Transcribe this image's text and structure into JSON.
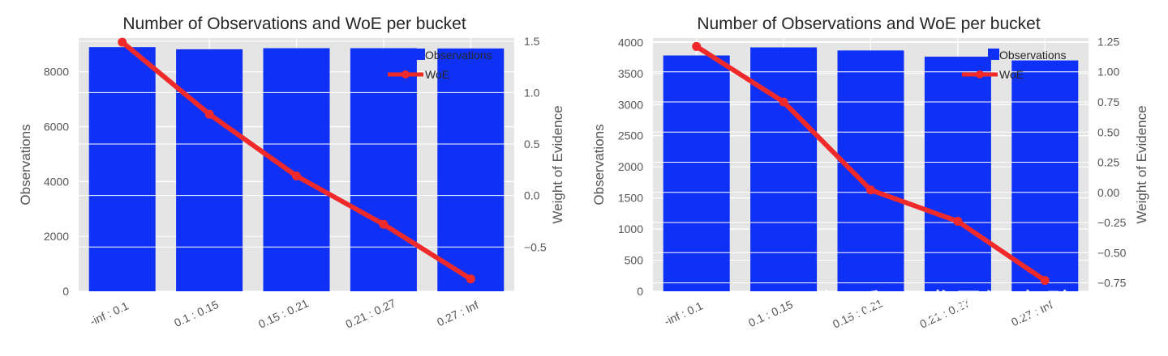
{
  "chart_data": [
    {
      "type": "bar",
      "title": "Number of Observations and WoE per bucket",
      "categories": [
        "-inf : 0.1",
        "0.1 : 0.15",
        "0.15 : 0.21",
        "0.21 : 0.27",
        "0.27 : Inf"
      ],
      "series": [
        {
          "name": "Observations",
          "type": "bar",
          "axis": "left",
          "values": [
            8900,
            8820,
            8860,
            8860,
            8850
          ]
        },
        {
          "name": "WoE",
          "type": "line",
          "axis": "right",
          "values": [
            1.49,
            0.79,
            0.19,
            -0.28,
            -0.81
          ]
        }
      ],
      "ylabel": "Observations",
      "y2label": "Weight of Evidence",
      "ylim": [
        0,
        9230
      ],
      "y2lim": [
        -0.93,
        1.53
      ],
      "yticks": [
        "0",
        "2000",
        "4000",
        "6000",
        "8000"
      ],
      "y2ticks": [
        "−0.5",
        "0.0",
        "0.5",
        "1.0",
        "1.5"
      ],
      "grid": true,
      "legend": "top-right",
      "colors": {
        "bars": "#0f31f5",
        "line": "#f0292b",
        "background": "#e5e5e5"
      }
    },
    {
      "type": "bar",
      "title": "Number of Observations and WoE per bucket",
      "categories": [
        "-inf : 0.1",
        "0.1 : 0.15",
        "0.15 : 0.21",
        "0.21 : 0.27",
        "0.27 : Inf"
      ],
      "series": [
        {
          "name": "Observations",
          "type": "bar",
          "axis": "left",
          "values": [
            3790,
            3920,
            3870,
            3770,
            3710
          ]
        },
        {
          "name": "WoE",
          "type": "line",
          "axis": "right",
          "values": [
            1.21,
            0.75,
            0.02,
            -0.24,
            -0.73
          ]
        }
      ],
      "ylabel": "Observations",
      "y2label": "Weight of Evidence",
      "ylim": [
        0,
        4070
      ],
      "y2lim": [
        -0.82,
        1.28
      ],
      "yticks": [
        "0",
        "500",
        "1000",
        "1500",
        "2000",
        "2500",
        "3000",
        "3500",
        "4000"
      ],
      "y2ticks": [
        "−0.75",
        "−0.50",
        "−0.25",
        "0.00",
        "0.25",
        "0.50",
        "0.75",
        "1.00",
        "1.25"
      ],
      "grid": true,
      "legend": "top-right",
      "colors": {
        "bars": "#0f31f5",
        "line": "#f0292b",
        "background": "#e5e5e5"
      }
    }
  ],
  "watermark": "知乎 @求是汪在路上"
}
